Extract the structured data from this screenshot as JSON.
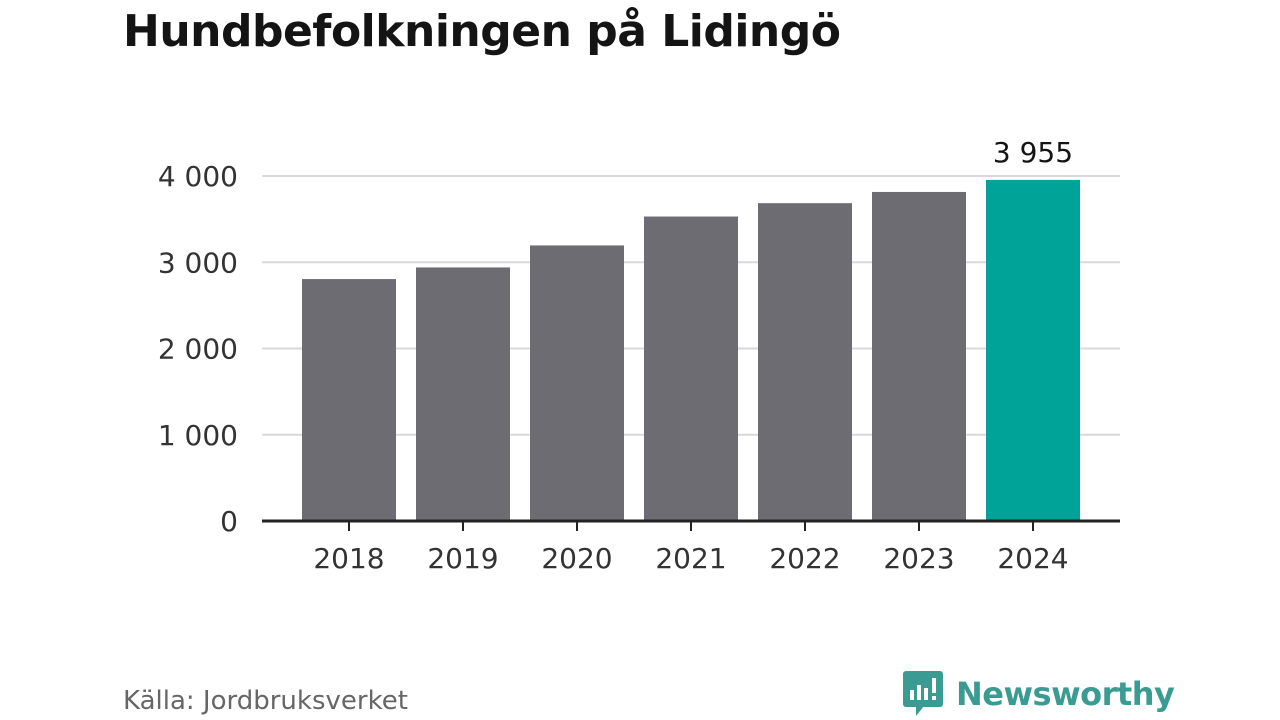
{
  "title": "Hundbefolkningen på Lidingö",
  "source": "Källa: Jordbruksverket",
  "brand": {
    "name": "Newsworthy",
    "icon": "newsworthy-logo-icon",
    "color": "#3a9b92"
  },
  "colors": {
    "bar": "#6d6c72",
    "highlight": "#00a398",
    "grid": "#d9d9d9",
    "axis": "#222222"
  },
  "chart_data": {
    "type": "bar",
    "categories": [
      "2018",
      "2019",
      "2020",
      "2021",
      "2022",
      "2023",
      "2024"
    ],
    "values": [
      2805,
      2940,
      3195,
      3530,
      3685,
      3815,
      3955
    ],
    "highlight_index": 6,
    "data_labels": [
      {
        "index": 6,
        "text": "3 955"
      }
    ],
    "ylim": [
      0,
      4000
    ],
    "yticks": [
      0,
      1000,
      2000,
      3000,
      4000
    ],
    "ytick_labels": [
      "0",
      "1 000",
      "2 000",
      "3 000",
      "4 000"
    ],
    "xlabel": "",
    "ylabel": "",
    "grid": true,
    "legend": "none"
  }
}
